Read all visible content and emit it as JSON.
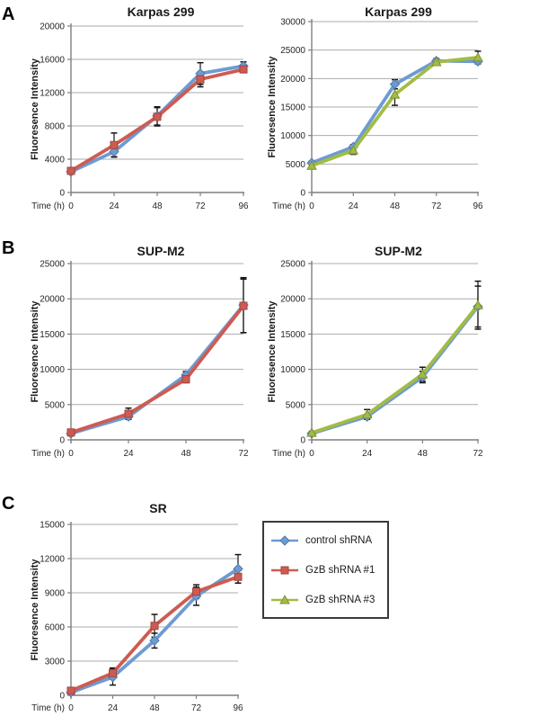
{
  "figure": {
    "panels": [
      {
        "label": "A"
      },
      {
        "label": "B"
      },
      {
        "label": "C"
      }
    ]
  },
  "legend": {
    "items": [
      {
        "label": "control shRNA",
        "color": "#6D9BD3",
        "marker": "diamond"
      },
      {
        "label": "GzB shRNA #1",
        "color": "#CE5B51",
        "marker": "square"
      },
      {
        "label": "GzB shRNA #3",
        "color": "#A2BC44",
        "marker": "triangle"
      }
    ]
  },
  "chart_data": [
    {
      "type": "line",
      "title": "Karpas 299",
      "xlabel": "Time (h)",
      "ylabel": "Fluoresence Intensity",
      "x": [
        0,
        24,
        48,
        72,
        96
      ],
      "ylim": [
        0,
        20000
      ],
      "ytick_step": 4000,
      "grid": true,
      "legend_position": "none",
      "series": [
        {
          "name": "control shRNA",
          "color": "#6D9BD3",
          "marker": "diamond",
          "values": [
            2500,
            4900,
            9200,
            14300,
            15200
          ],
          "errors": [
            250,
            600,
            1100,
            1300,
            500
          ]
        },
        {
          "name": "GzB shRNA #1",
          "color": "#CE5B51",
          "marker": "square",
          "values": [
            2600,
            5700,
            9100,
            13600,
            14800
          ],
          "errors": [
            250,
            1450,
            1100,
            900,
            400
          ]
        }
      ]
    },
    {
      "type": "line",
      "title": "Karpas 299",
      "xlabel": "Time (h)",
      "ylabel": "Fluoresence Intensity",
      "x": [
        0,
        24,
        48,
        72,
        96
      ],
      "ylim": [
        0,
        30000
      ],
      "ytick_step": 5000,
      "grid": true,
      "legend_position": "none",
      "series": [
        {
          "name": "control shRNA",
          "color": "#6D9BD3",
          "marker": "diamond",
          "values": [
            5200,
            8000,
            19000,
            23100,
            23000
          ],
          "errors": [
            300,
            400,
            800,
            400,
            400
          ]
        },
        {
          "name": "GzB shRNA #3",
          "color": "#A2BC44",
          "marker": "triangle",
          "values": [
            4700,
            7400,
            17200,
            22900,
            23700
          ],
          "errors": [
            400,
            700,
            1900,
            400,
            1100
          ]
        }
      ]
    },
    {
      "type": "line",
      "title": "SUP-M2",
      "xlabel": "Time (h)",
      "ylabel": "Fluoresence Intensity",
      "x": [
        0,
        24,
        48,
        72
      ],
      "ylim": [
        0,
        25000
      ],
      "ytick_step": 5000,
      "grid": true,
      "legend_position": "none",
      "series": [
        {
          "name": "control shRNA",
          "color": "#6D9BD3",
          "marker": "diamond",
          "values": [
            900,
            3300,
            9200,
            19100
          ],
          "errors": [
            150,
            300,
            500,
            3900
          ]
        },
        {
          "name": "GzB shRNA #1",
          "color": "#CE5B51",
          "marker": "square",
          "values": [
            1050,
            3700,
            8600,
            19000
          ],
          "errors": [
            150,
            800,
            500,
            3800
          ]
        }
      ]
    },
    {
      "type": "line",
      "title": "SUP-M2",
      "xlabel": "Time (h)",
      "ylabel": "Fluoresence Intensity",
      "x": [
        0,
        24,
        48,
        72
      ],
      "ylim": [
        0,
        25000
      ],
      "ytick_step": 5000,
      "grid": true,
      "legend_position": "none",
      "series": [
        {
          "name": "control shRNA",
          "color": "#6D9BD3",
          "marker": "diamond",
          "values": [
            900,
            3300,
            8900,
            18900
          ],
          "errors": [
            150,
            300,
            800,
            2900
          ]
        },
        {
          "name": "GzB shRNA #3",
          "color": "#A2BC44",
          "marker": "triangle",
          "values": [
            1000,
            3600,
            9300,
            19100
          ],
          "errors": [
            150,
            700,
            1000,
            3400
          ]
        }
      ]
    },
    {
      "type": "line",
      "title": "SR",
      "xlabel": "Time (h)",
      "ylabel": "Fluoresence Intensity",
      "x": [
        0,
        24,
        48,
        72,
        96
      ],
      "ylim": [
        0,
        15000
      ],
      "ytick_step": 3000,
      "grid": true,
      "legend_position": "right",
      "series": [
        {
          "name": "control shRNA",
          "color": "#6D9BD3",
          "marker": "diamond",
          "values": [
            250,
            1600,
            4800,
            8700,
            11100
          ],
          "errors": [
            150,
            700,
            650,
            800,
            1250
          ]
        },
        {
          "name": "GzB shRNA #1",
          "color": "#CE5B51",
          "marker": "square",
          "values": [
            400,
            1950,
            6100,
            9100,
            10400
          ],
          "errors": [
            150,
            450,
            1000,
            600,
            550
          ]
        }
      ]
    }
  ]
}
